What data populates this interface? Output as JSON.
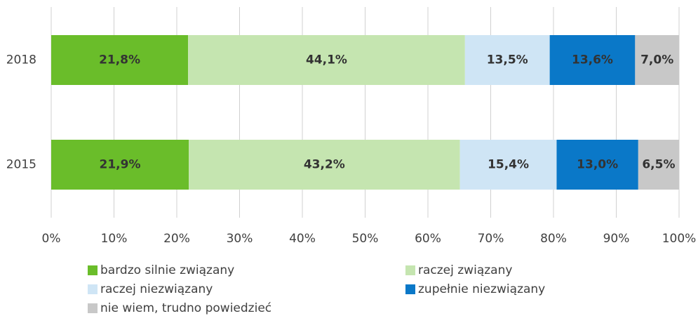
{
  "chart_data": {
    "type": "stacked-barh",
    "categories": [
      "2018",
      "2015"
    ],
    "series": [
      {
        "name": "bardzo silnie związany",
        "color": "#6abd2a",
        "values": [
          21.8,
          21.9
        ],
        "value_labels": [
          "21,8%",
          "21,9%"
        ]
      },
      {
        "name": "raczej związany",
        "color": "#c5e5b0",
        "values": [
          44.1,
          43.2
        ],
        "value_labels": [
          "44,1%",
          "43,2%"
        ]
      },
      {
        "name": "raczej niezwiązany",
        "color": "#cfe5f5",
        "values": [
          13.5,
          15.4
        ],
        "value_labels": [
          "13,5%",
          "15,4%"
        ]
      },
      {
        "name": "zupełnie niezwiązany",
        "color": "#0a78c8",
        "values": [
          13.6,
          13.0
        ],
        "value_labels": [
          "13,6%",
          "13,0%"
        ]
      },
      {
        "name": "nie wiem, trudno powiedzieć",
        "color": "#c8c8c8",
        "values": [
          7.0,
          6.5
        ],
        "value_labels": [
          "7,0%",
          "6,5%"
        ]
      }
    ],
    "xlim": [
      0,
      100
    ],
    "xticks": [
      {
        "value": 0,
        "label": "0%"
      },
      {
        "value": 10,
        "label": "10%"
      },
      {
        "value": 20,
        "label": "20%"
      },
      {
        "value": 30,
        "label": "30%"
      },
      {
        "value": 40,
        "label": "40%"
      },
      {
        "value": 50,
        "label": "50%"
      },
      {
        "value": 60,
        "label": "60%"
      },
      {
        "value": 70,
        "label": "70%"
      },
      {
        "value": 80,
        "label": "80%"
      },
      {
        "value": 90,
        "label": "90%"
      },
      {
        "value": 100,
        "label": "100%"
      }
    ],
    "grid": true
  }
}
